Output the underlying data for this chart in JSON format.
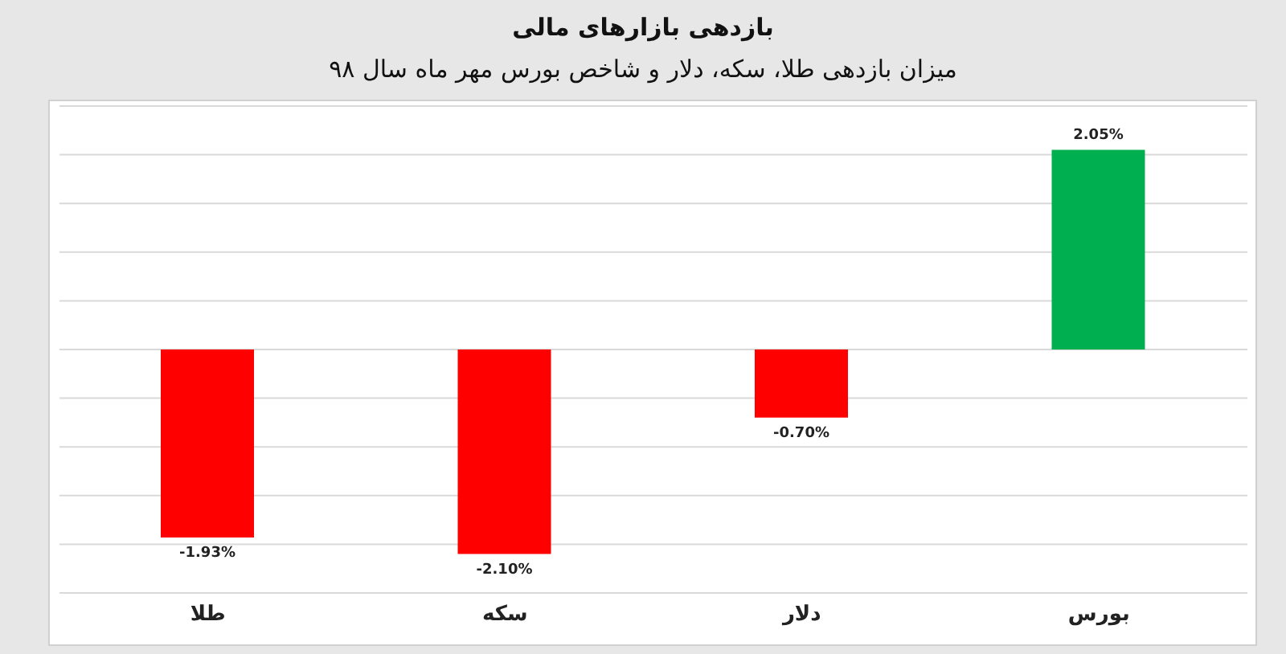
{
  "chart_data": {
    "type": "bar",
    "title": "بازدهی بازارهای مالی",
    "subtitle": "میزان بازدهی طلا، سکه، دلار و شاخص بورس مهر ماه سال ۹۸",
    "categories": [
      "طلا",
      "سکه",
      "دلار",
      "بورس"
    ],
    "values": [
      -1.93,
      -2.1,
      -0.7,
      2.05
    ],
    "colors": [
      "#ff0000",
      "#ff0000",
      "#ff0000",
      "#00b050"
    ],
    "value_labels": [
      "-1.93%",
      "-2.10%",
      "-0.70%",
      "2.05%"
    ],
    "ylim": [
      -2.5,
      2.5
    ],
    "grid": "y",
    "tick_labels": "x",
    "legend": false
  }
}
